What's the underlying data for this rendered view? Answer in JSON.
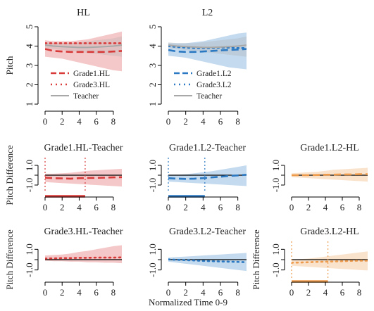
{
  "figure": {
    "xlabel": "Normalized Time 0-9"
  },
  "chart_data": [
    {
      "id": "hl",
      "type": "line",
      "title": "HL",
      "ylabel": "Pitch",
      "xlim": [
        0,
        9
      ],
      "ylim": [
        1,
        5
      ],
      "yticks": [
        "1",
        "2",
        "3",
        "4",
        "5"
      ],
      "xticks": [
        "0",
        "2",
        "4",
        "6",
        "8"
      ],
      "legend_position": "bottom-left",
      "series": [
        {
          "name": "Grade1.HL",
          "style": "dashed",
          "color": "#d83a3a",
          "x": [
            0,
            1,
            2,
            3,
            4,
            5,
            6,
            7,
            8,
            9
          ],
          "y": [
            3.85,
            3.75,
            3.72,
            3.7,
            3.7,
            3.7,
            3.7,
            3.7,
            3.72,
            3.75
          ],
          "band_lower": [
            3.45,
            3.4,
            3.35,
            3.25,
            3.15,
            3.05,
            2.95,
            2.85,
            2.75,
            2.7
          ],
          "band_upper": [
            4.3,
            4.25,
            4.25,
            4.25,
            4.3,
            4.35,
            4.45,
            4.55,
            4.65,
            4.75
          ]
        },
        {
          "name": "Grade3.HL",
          "style": "dotted",
          "color": "#d83a3a",
          "x": [
            0,
            1,
            2,
            3,
            4,
            5,
            6,
            7,
            8,
            9
          ],
          "y": [
            4.15,
            4.15,
            4.15,
            4.15,
            4.15,
            4.15,
            4.15,
            4.15,
            4.15,
            4.15
          ]
        },
        {
          "name": "Teacher",
          "style": "solid",
          "color": "#a8a8a8",
          "x": [
            0,
            1,
            2,
            3,
            4,
            5,
            6,
            7,
            8,
            9
          ],
          "y": [
            4.05,
            4.0,
            3.97,
            3.95,
            3.93,
            3.93,
            3.95,
            3.97,
            4.0,
            4.05
          ],
          "band_lower": [
            3.9,
            3.85,
            3.8,
            3.75,
            3.7,
            3.65,
            3.6,
            3.55,
            3.5,
            3.45
          ],
          "band_upper": [
            4.2,
            4.15,
            4.15,
            4.15,
            4.2,
            4.25,
            4.3,
            4.35,
            4.4,
            4.5
          ]
        }
      ]
    },
    {
      "id": "l2",
      "type": "line",
      "title": "L2",
      "ylabel": "",
      "xlim": [
        0,
        9
      ],
      "ylim": [
        1,
        5
      ],
      "yticks": [
        "1",
        "2",
        "3",
        "4",
        "5"
      ],
      "xticks": [
        "0",
        "2",
        "4",
        "6",
        "8"
      ],
      "legend_position": "bottom-left",
      "series": [
        {
          "name": "Grade1.L2",
          "style": "dashed",
          "color": "#2b79c2",
          "x": [
            0,
            1,
            2,
            3,
            4,
            5,
            6,
            7,
            8,
            9
          ],
          "y": [
            3.8,
            3.72,
            3.7,
            3.7,
            3.72,
            3.75,
            3.78,
            3.8,
            3.82,
            3.85
          ],
          "band_lower": [
            3.5,
            3.45,
            3.4,
            3.3,
            3.2,
            3.1,
            3.0,
            2.9,
            2.85,
            2.8
          ],
          "band_upper": [
            4.15,
            4.15,
            4.15,
            4.2,
            4.25,
            4.35,
            4.45,
            4.55,
            4.65,
            4.7
          ]
        },
        {
          "name": "Grade3.L2",
          "style": "dotted",
          "color": "#2b79c2",
          "x": [
            0,
            1,
            2,
            3,
            4,
            5,
            6,
            7,
            8,
            9
          ],
          "y": [
            4.0,
            3.95,
            3.92,
            3.9,
            3.9,
            3.9,
            3.92,
            3.92,
            3.9,
            3.9
          ]
        },
        {
          "name": "Teacher",
          "style": "solid",
          "color": "#a8a8a8",
          "x": [
            0,
            1,
            2,
            3,
            4,
            5,
            6,
            7,
            8,
            9
          ],
          "y": [
            4.05,
            4.0,
            3.97,
            3.95,
            3.93,
            3.93,
            3.95,
            3.97,
            4.0,
            4.05
          ],
          "band_lower": [
            3.9,
            3.85,
            3.8,
            3.75,
            3.7,
            3.65,
            3.6,
            3.55,
            3.5,
            3.45
          ],
          "band_upper": [
            4.2,
            4.15,
            4.15,
            4.15,
            4.2,
            4.25,
            4.3,
            4.35,
            4.4,
            4.5
          ]
        }
      ]
    },
    {
      "id": "g1hl-teacher",
      "type": "line",
      "title": "Grade1.HL-Teacher",
      "ylabel": "Pitch Difference",
      "xlim": [
        0,
        9
      ],
      "ylim": [
        -1.5,
        1.5
      ],
      "yticks": [
        "-1.0",
        "",
        "1.0"
      ],
      "xticks": [
        "0",
        "2",
        "4",
        "6",
        "8"
      ],
      "reference_line": 0,
      "vlines": [
        0,
        4.7
      ],
      "significant_interval": [
        0,
        4.7
      ],
      "color": "#d83a3a",
      "series": [
        {
          "style": "dashed",
          "x": [
            0,
            1,
            2,
            3,
            4,
            5,
            6,
            7,
            8,
            9
          ],
          "y": [
            -0.25,
            -0.3,
            -0.32,
            -0.35,
            -0.3,
            -0.28,
            -0.27,
            -0.25,
            -0.22,
            -0.2
          ],
          "band_lower": [
            -0.7,
            -0.75,
            -0.8,
            -0.85,
            -0.9,
            -0.95,
            -1.0,
            -1.05,
            -1.1,
            -1.15
          ],
          "band_upper": [
            0.15,
            0.15,
            0.2,
            0.25,
            0.35,
            0.45,
            0.5,
            0.55,
            0.6,
            0.65
          ]
        }
      ]
    },
    {
      "id": "g1l2-teacher",
      "type": "line",
      "title": "Grade1.L2-Teacher",
      "ylabel": "",
      "xlim": [
        0,
        9
      ],
      "ylim": [
        -1.5,
        1.5
      ],
      "yticks": [
        "-1.0",
        "",
        "1.0"
      ],
      "xticks": [
        "0",
        "2",
        "4",
        "6",
        "8"
      ],
      "reference_line": 0,
      "vlines": [
        0,
        4.2
      ],
      "significant_interval": [
        0,
        4.2
      ],
      "color": "#2b79c2",
      "series": [
        {
          "style": "dashed",
          "x": [
            0,
            1,
            2,
            3,
            4,
            5,
            6,
            7,
            8,
            9
          ],
          "y": [
            -0.3,
            -0.35,
            -0.38,
            -0.35,
            -0.3,
            -0.22,
            -0.15,
            -0.08,
            -0.02,
            0.05
          ],
          "band_lower": [
            -0.65,
            -0.7,
            -0.75,
            -0.8,
            -0.85,
            -0.9,
            -0.95,
            -1.0,
            -1.05,
            -1.1
          ],
          "band_upper": [
            0.05,
            0.05,
            0.1,
            0.2,
            0.3,
            0.4,
            0.55,
            0.7,
            0.85,
            1.0
          ]
        }
      ]
    },
    {
      "id": "g1l2-hl",
      "type": "line",
      "title": "Grade1.L2-HL",
      "ylabel": "",
      "xlim": [
        0,
        9
      ],
      "ylim": [
        -1.5,
        1.5
      ],
      "yticks": [
        "-1.0",
        "",
        "1.0"
      ],
      "xticks": [
        "0",
        "2",
        "4",
        "6",
        "8"
      ],
      "reference_line": 0,
      "vlines": [],
      "color": "#ee9b4c",
      "series": [
        {
          "style": "dashed",
          "x": [
            0,
            1,
            2,
            3,
            4,
            5,
            6,
            7,
            8,
            9
          ],
          "y": [
            0.0,
            0.0,
            0.0,
            0.02,
            0.05,
            0.06,
            0.08,
            0.08,
            0.1,
            0.1
          ],
          "band_lower": [
            -0.2,
            -0.25,
            -0.3,
            -0.35,
            -0.4,
            -0.45,
            -0.5,
            -0.55,
            -0.6,
            -0.65
          ],
          "band_upper": [
            0.2,
            0.25,
            0.3,
            0.35,
            0.45,
            0.55,
            0.6,
            0.65,
            0.7,
            0.75
          ]
        }
      ]
    },
    {
      "id": "g3hl-teacher",
      "type": "line",
      "title": "Grade3.HL-Teacher",
      "ylabel": "Pitch Difference",
      "xlim": [
        0,
        9
      ],
      "ylim": [
        -1.5,
        1.5
      ],
      "yticks": [
        "-1.0",
        "",
        "1.0"
      ],
      "xticks": [
        "0",
        "2",
        "4",
        "6",
        "8"
      ],
      "reference_line": 0,
      "vlines": [],
      "color": "#d83a3a",
      "series": [
        {
          "style": "dotted",
          "x": [
            0,
            1,
            2,
            3,
            4,
            5,
            6,
            7,
            8,
            9
          ],
          "y": [
            0.1,
            0.12,
            0.15,
            0.15,
            0.18,
            0.18,
            0.2,
            0.2,
            0.2,
            0.22
          ],
          "band_lower": [
            -0.1,
            -0.15,
            -0.15,
            -0.2,
            -0.2,
            -0.25,
            -0.25,
            -0.3,
            -0.3,
            -0.35
          ],
          "band_upper": [
            0.4,
            0.45,
            0.5,
            0.6,
            0.75,
            0.85,
            1.0,
            1.15,
            1.3,
            1.4
          ]
        }
      ]
    },
    {
      "id": "g3l2-teacher",
      "type": "line",
      "title": "Grade3.L2-Teacher",
      "ylabel": "",
      "xlim": [
        0,
        9
      ],
      "ylim": [
        -1.5,
        1.5
      ],
      "yticks": [
        "-1.0",
        "",
        "1.0"
      ],
      "xticks": [
        "0",
        "2",
        "4",
        "6",
        "8"
      ],
      "reference_line": 0,
      "vlines": [],
      "color": "#2b79c2",
      "series": [
        {
          "style": "dotted",
          "x": [
            0,
            1,
            2,
            3,
            4,
            5,
            6,
            7,
            8,
            9
          ],
          "y": [
            0.02,
            -0.02,
            -0.05,
            -0.08,
            -0.12,
            -0.15,
            -0.18,
            -0.2,
            -0.22,
            -0.25
          ],
          "band_lower": [
            -0.2,
            -0.3,
            -0.4,
            -0.5,
            -0.6,
            -0.7,
            -0.8,
            -0.9,
            -1.0,
            -1.1
          ],
          "band_upper": [
            0.2,
            0.25,
            0.3,
            0.35,
            0.4,
            0.45,
            0.5,
            0.55,
            0.6,
            0.65
          ]
        }
      ]
    },
    {
      "id": "g3l2-hl",
      "type": "line",
      "title": "Grade3.L2-HL",
      "ylabel": "Pitch Difference",
      "xlim": [
        0,
        9
      ],
      "ylim": [
        -1.5,
        1.5
      ],
      "yticks": [
        "-1.0",
        "",
        "1.0"
      ],
      "xticks": [
        "0",
        "2",
        "4",
        "6",
        "8"
      ],
      "reference_line": 0,
      "vlines": [
        0,
        4.3
      ],
      "significant_interval": [
        0,
        4.3
      ],
      "color": "#ee9b4c",
      "series": [
        {
          "style": "dotted",
          "x": [
            0,
            1,
            2,
            3,
            4,
            5,
            6,
            7,
            8,
            9
          ],
          "y": [
            -0.3,
            -0.28,
            -0.25,
            -0.22,
            -0.2,
            -0.18,
            -0.15,
            -0.12,
            -0.1,
            -0.1
          ],
          "band_lower": [
            -0.6,
            -0.65,
            -0.7,
            -0.75,
            -0.8,
            -0.85,
            -0.9,
            -0.95,
            -1.0,
            -1.05
          ],
          "band_upper": [
            0.0,
            0.05,
            0.1,
            0.2,
            0.3,
            0.4,
            0.5,
            0.6,
            0.7,
            0.8
          ]
        }
      ]
    }
  ]
}
